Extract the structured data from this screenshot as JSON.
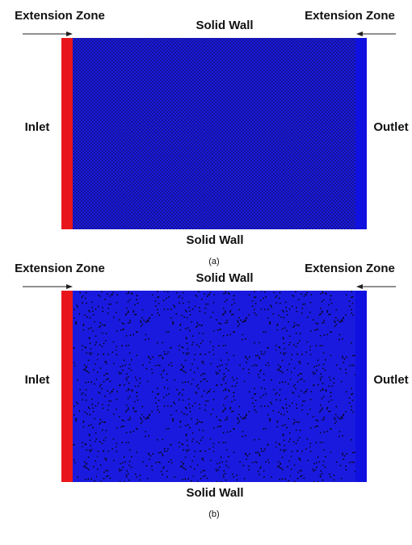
{
  "panels": [
    {
      "extension_zone_left": "Extension Zone",
      "top_wall": "Solid Wall",
      "extension_zone_right": "Extension Zone",
      "inlet": "Inlet",
      "outlet": "Outlet",
      "bottom_wall": "Solid Wall",
      "caption": "(a)"
    },
    {
      "extension_zone_left": "Extension Zone",
      "top_wall": "Solid Wall",
      "extension_zone_right": "Extension Zone",
      "inlet": "Inlet",
      "outlet": "Outlet",
      "bottom_wall": "Solid Wall",
      "caption": "(b)"
    }
  ]
}
